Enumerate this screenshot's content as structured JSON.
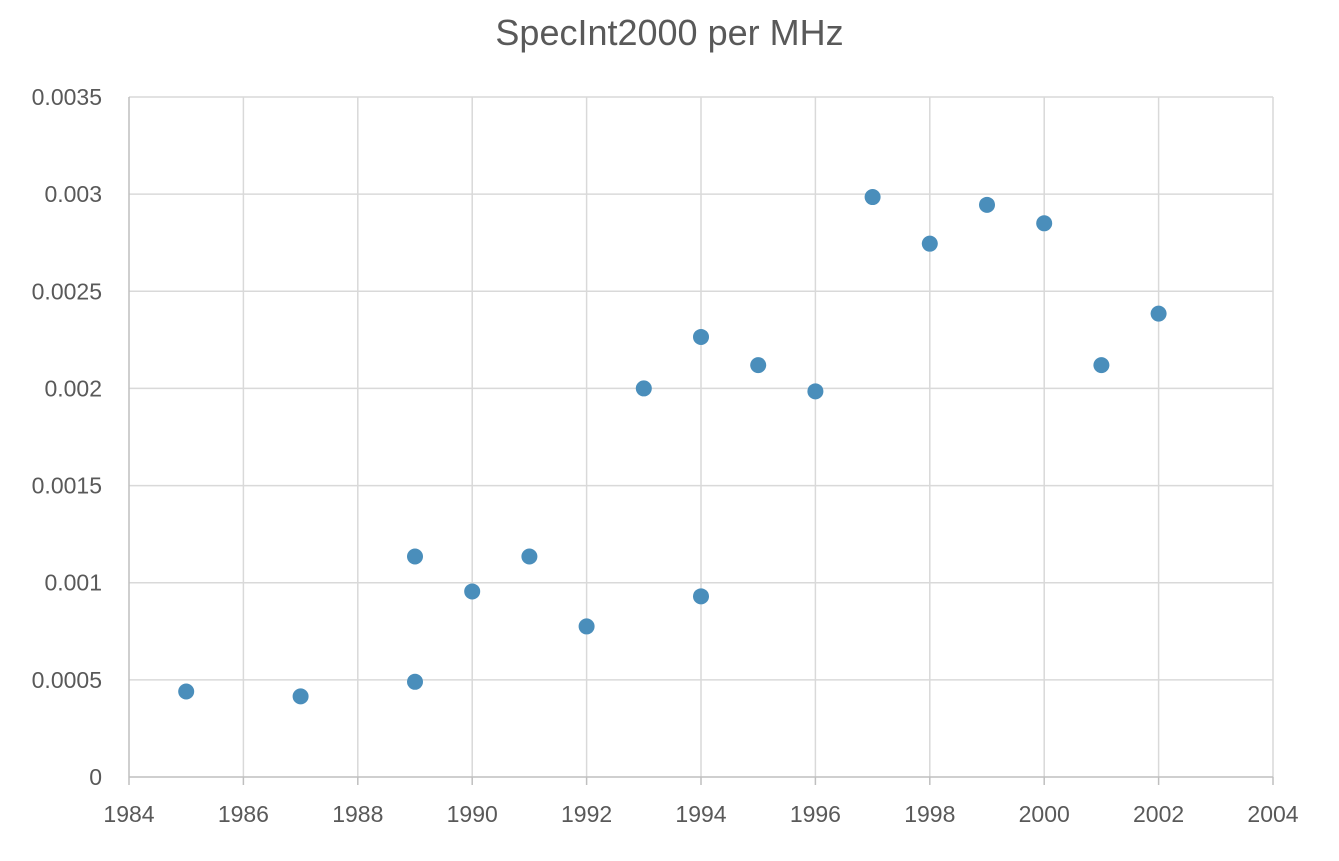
{
  "chart_data": {
    "type": "scatter",
    "title": "SpecInt2000 per MHz",
    "xlabel": "",
    "ylabel": "",
    "xlim": [
      1984,
      2004
    ],
    "ylim": [
      0,
      0.0035
    ],
    "x_ticks": [
      1984,
      1986,
      1988,
      1990,
      1992,
      1994,
      1996,
      1998,
      2000,
      2002,
      2004
    ],
    "y_ticks": [
      "0",
      "0.0005",
      "0.001",
      "0.0015",
      "0.002",
      "0.0025",
      "0.003",
      "0.0035"
    ],
    "grid": true,
    "legend": "none",
    "marker_color": "#4a8ebb",
    "points": [
      {
        "x": 1985,
        "y": 0.00044
      },
      {
        "x": 1987,
        "y": 0.000415
      },
      {
        "x": 1989,
        "y": 0.00049
      },
      {
        "x": 1989,
        "y": 0.001135
      },
      {
        "x": 1990,
        "y": 0.000955
      },
      {
        "x": 1991,
        "y": 0.001135
      },
      {
        "x": 1992,
        "y": 0.000775
      },
      {
        "x": 1993,
        "y": 0.002
      },
      {
        "x": 1994,
        "y": 0.00093
      },
      {
        "x": 1994,
        "y": 0.002265
      },
      {
        "x": 1995,
        "y": 0.00212
      },
      {
        "x": 1996,
        "y": 0.001985
      },
      {
        "x": 1997,
        "y": 0.002985
      },
      {
        "x": 1998,
        "y": 0.002745
      },
      {
        "x": 1999,
        "y": 0.002945
      },
      {
        "x": 2000,
        "y": 0.00285
      },
      {
        "x": 2001,
        "y": 0.00212
      },
      {
        "x": 2002,
        "y": 0.002385
      }
    ]
  }
}
